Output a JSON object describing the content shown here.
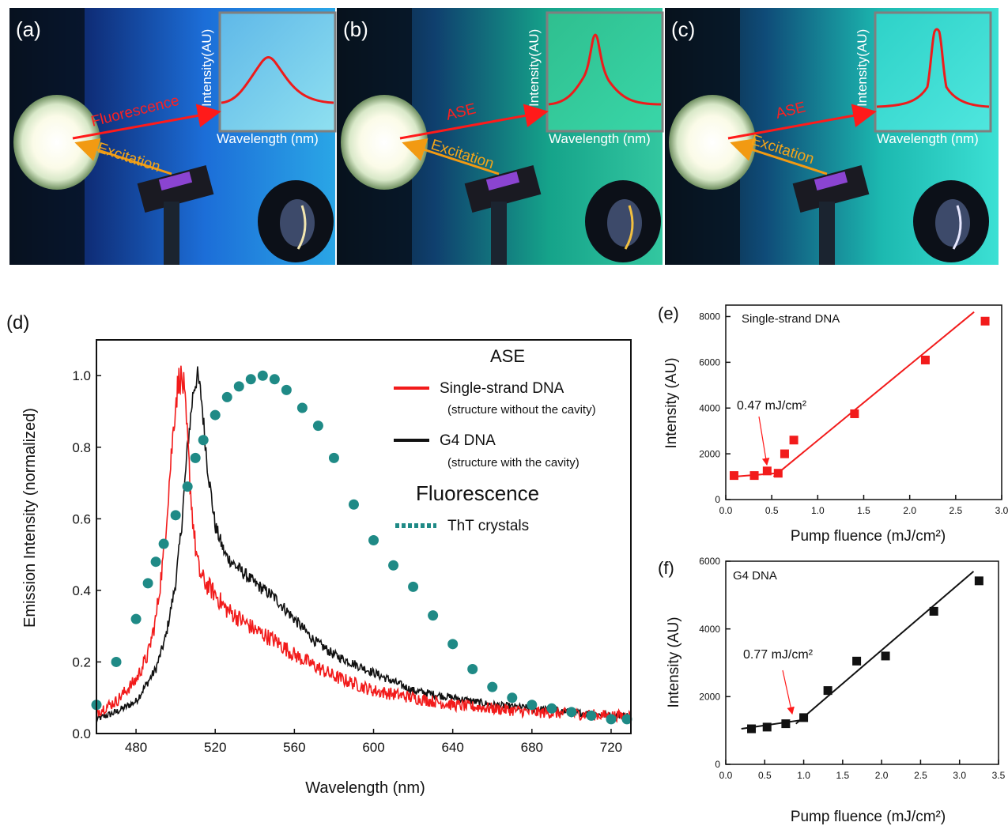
{
  "colors": {
    "ss_red": "#f21b1b",
    "g4_black": "#111111",
    "tht_teal": "#1f8a86",
    "arrow_red": "#ff1a1a",
    "arrow_orange": "#f29a12"
  },
  "photos": [
    {
      "label": "(a)",
      "beam": "Fluorescence",
      "excitation": "Excitation",
      "inset_y": "Intensity(AU)",
      "inset_x": "Wavelength (nm)",
      "icon": "fluorescence-spectrum-icon"
    },
    {
      "label": "(b)",
      "beam": "ASE",
      "excitation": "Excitation",
      "inset_y": "Intensity(AU)",
      "inset_x": "Wavelength (nm)",
      "icon": "ase-spectrum-icon"
    },
    {
      "label": "(c)",
      "beam": "ASE",
      "excitation": "Excitation",
      "inset_y": "Intensity(AU)",
      "inset_x": "Wavelength (nm)",
      "icon": "narrow-ase-spectrum-icon"
    }
  ],
  "panel_d": {
    "label": "(d)",
    "legend": {
      "heading_ase": "ASE",
      "heading_fluor": "Fluorescence",
      "ss_name": "Single-strand DNA",
      "ss_note": "(structure without the cavity)",
      "g4_name": "G4 DNA",
      "g4_note": "(structure with the cavity)",
      "tht_name": "ThT crystals"
    }
  },
  "panel_e": {
    "label": "(e)",
    "annotation": "0.47 mJ/cm²"
  },
  "panel_f": {
    "label": "(f)",
    "annotation": "0.77 mJ/cm²"
  },
  "chart_data": [
    {
      "type": "line",
      "panel": "(d)",
      "xlabel": "Wavelength (nm)",
      "ylabel": "Emission Intensity (normalized)",
      "xlim": [
        460,
        730
      ],
      "ylim": [
        0,
        1.1
      ],
      "xticks": [
        480,
        520,
        560,
        600,
        640,
        680,
        720
      ],
      "yticks": [
        0.0,
        0.2,
        0.4,
        0.6,
        0.8,
        1.0
      ],
      "series": [
        {
          "name": "Single-strand DNA",
          "style": "noisy-line",
          "x": [
            460,
            470,
            480,
            486,
            490,
            494,
            497,
            500,
            502,
            504,
            506,
            508,
            510,
            512,
            515,
            520,
            525,
            530,
            540,
            550,
            560,
            570,
            580,
            600,
            620,
            640,
            660,
            680,
            700,
            720,
            730
          ],
          "y": [
            0.06,
            0.09,
            0.15,
            0.22,
            0.32,
            0.5,
            0.72,
            0.93,
            1.0,
            0.97,
            0.82,
            0.64,
            0.52,
            0.45,
            0.42,
            0.39,
            0.35,
            0.33,
            0.29,
            0.26,
            0.22,
            0.19,
            0.16,
            0.12,
            0.1,
            0.08,
            0.07,
            0.06,
            0.055,
            0.05,
            0.05
          ]
        },
        {
          "name": "G4 DNA",
          "style": "noisy-line",
          "x": [
            460,
            470,
            480,
            490,
            495,
            500,
            503,
            506,
            509,
            511,
            513,
            516,
            520,
            525,
            530,
            540,
            550,
            560,
            570,
            580,
            600,
            620,
            640,
            660,
            680,
            700,
            720,
            730
          ],
          "y": [
            0.04,
            0.06,
            0.09,
            0.18,
            0.27,
            0.42,
            0.58,
            0.8,
            0.96,
            1.0,
            0.94,
            0.75,
            0.58,
            0.5,
            0.47,
            0.42,
            0.38,
            0.32,
            0.26,
            0.22,
            0.17,
            0.12,
            0.1,
            0.08,
            0.07,
            0.06,
            0.05,
            0.05
          ]
        },
        {
          "name": "ThT crystals",
          "style": "dots",
          "x": [
            460,
            470,
            480,
            486,
            490,
            494,
            500,
            506,
            510,
            514,
            520,
            526,
            532,
            538,
            544,
            550,
            556,
            564,
            572,
            580,
            590,
            600,
            610,
            620,
            630,
            640,
            650,
            660,
            670,
            680,
            690,
            700,
            710,
            720,
            728
          ],
          "y": [
            0.08,
            0.2,
            0.32,
            0.42,
            0.48,
            0.53,
            0.61,
            0.69,
            0.77,
            0.82,
            0.89,
            0.94,
            0.97,
            0.99,
            1.0,
            0.99,
            0.96,
            0.91,
            0.86,
            0.77,
            0.64,
            0.54,
            0.47,
            0.41,
            0.33,
            0.25,
            0.18,
            0.13,
            0.1,
            0.08,
            0.07,
            0.06,
            0.05,
            0.04,
            0.04
          ]
        }
      ]
    },
    {
      "type": "scatter",
      "panel": "(e)",
      "title": "Single-strand DNA",
      "xlabel": "Pump fluence (mJ/cm²)",
      "ylabel": "Intensity (AU)",
      "xlim": [
        0,
        3.0
      ],
      "ylim": [
        0,
        8500
      ],
      "xticks": [
        "0.0",
        "0.5",
        "1.0",
        "1.5",
        "2.0",
        "2.5",
        "3.0"
      ],
      "yticks": [
        0,
        2000,
        4000,
        6000,
        8000
      ],
      "points": {
        "x": [
          0.09,
          0.31,
          0.45,
          0.57,
          0.64,
          0.74,
          1.4,
          2.17,
          2.82
        ],
        "y": [
          1050,
          1050,
          1250,
          1150,
          2000,
          2600,
          3750,
          6100,
          7800
        ]
      },
      "fit_lines": [
        {
          "x": [
            0.09,
            0.55
          ],
          "y": [
            1000,
            1150
          ]
        },
        {
          "x": [
            0.52,
            2.7
          ],
          "y": [
            1000,
            8200
          ]
        }
      ],
      "threshold": 0.47
    },
    {
      "type": "scatter",
      "panel": "(f)",
      "title": "G4 DNA",
      "xlabel": "Pump fluence (mJ/cm²)",
      "ylabel": "Intensity (AU)",
      "xlim": [
        0,
        3.5
      ],
      "ylim": [
        0,
        6000
      ],
      "xticks": [
        "0.0",
        "0.5",
        "1.0",
        "1.5",
        "2.0",
        "2.5",
        "3.0",
        "3.5"
      ],
      "yticks": [
        0,
        2000,
        4000,
        6000
      ],
      "points": {
        "x": [
          0.33,
          0.53,
          0.77,
          1.0,
          1.31,
          1.68,
          2.05,
          2.67,
          3.25
        ],
        "y": [
          1050,
          1100,
          1200,
          1380,
          2180,
          3050,
          3200,
          4520,
          5420
        ]
      },
      "fit_lines": [
        {
          "x": [
            0.2,
            0.95
          ],
          "y": [
            1050,
            1300
          ]
        },
        {
          "x": [
            0.9,
            3.18
          ],
          "y": [
            1200,
            5700
          ]
        }
      ],
      "threshold": 0.77
    }
  ]
}
